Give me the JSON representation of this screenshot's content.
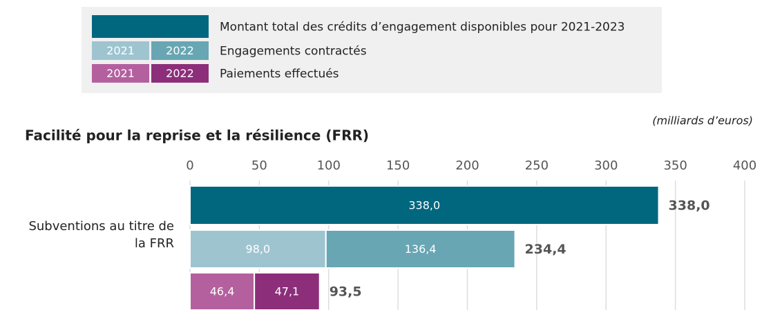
{
  "chart_data": {
    "type": "stacked-bar-groups",
    "title": "Facilité pour la reprise et la résilience (FRR)",
    "unit": "(milliards d’euros)",
    "categories": [
      "Subventions au titre de la FRR"
    ],
    "xlim": [
      0,
      400
    ],
    "xticks": [
      0,
      50,
      100,
      150,
      200,
      250,
      300,
      350,
      400
    ],
    "grid": true,
    "groups": [
      {
        "name": "Montant total des crédits d’engagement disponibles pour 2021-2023",
        "total": 338,
        "total_label": "338,0",
        "series": [
          {
            "color": "#00677f",
            "values": [
              338
            ],
            "value_labels": [
              "338,0"
            ]
          }
        ]
      },
      {
        "name": "Engagements contractés",
        "total": 234.4,
        "total_label": "234,4",
        "series": [
          {
            "name": "2021",
            "color": "#9ec4d0",
            "values": [
              98
            ],
            "value_labels": [
              "98,0"
            ]
          },
          {
            "name": "2022",
            "color": "#68a6b4",
            "values": [
              136.4
            ],
            "value_labels": [
              "136,4"
            ]
          }
        ]
      },
      {
        "name": "Paiements effectués",
        "total": 93.5,
        "total_label": "93,5",
        "series": [
          {
            "name": "2021",
            "color": "#b4609f",
            "values": [
              46.4
            ],
            "value_labels": [
              "46,4"
            ]
          },
          {
            "name": "2022",
            "color": "#8c2e7a",
            "values": [
              47.1
            ],
            "value_labels": [
              "47,1"
            ]
          }
        ]
      }
    ]
  }
}
